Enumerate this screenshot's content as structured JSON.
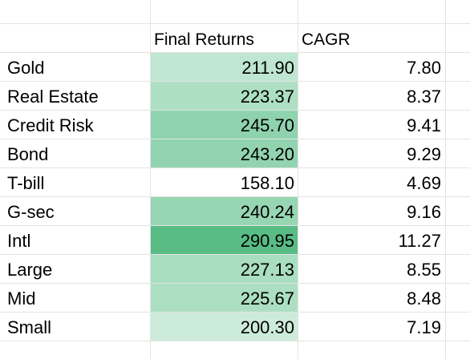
{
  "sheet": {
    "headers": {
      "returns": "Final Returns",
      "cagr": "CAGR"
    },
    "rows": [
      {
        "name": "Gold",
        "final_returns": "211.90",
        "cagr": "7.80",
        "fill": "#bfe6d0"
      },
      {
        "name": "Real Estate",
        "final_returns": "223.37",
        "cagr": "8.37",
        "fill": "#ade0c2"
      },
      {
        "name": "Credit Risk",
        "final_returns": "245.70",
        "cagr": "9.41",
        "fill": "#8fd3ae"
      },
      {
        "name": "Bond",
        "final_returns": "243.20",
        "cagr": "9.29",
        "fill": "#92d4b0"
      },
      {
        "name": "T-bill",
        "final_returns": "158.10",
        "cagr": "4.69",
        "fill": "#ffffff"
      },
      {
        "name": "G-sec",
        "final_returns": "240.24",
        "cagr": "9.16",
        "fill": "#97d6b3"
      },
      {
        "name": "Intl",
        "final_returns": "290.95",
        "cagr": "11.27",
        "fill": "#59bc85"
      },
      {
        "name": "Large",
        "final_returns": "227.13",
        "cagr": "8.55",
        "fill": "#a9dec0"
      },
      {
        "name": "Mid",
        "final_returns": "225.67",
        "cagr": "8.48",
        "fill": "#acdfc2"
      },
      {
        "name": "Small",
        "final_returns": "200.30",
        "cagr": "7.19",
        "fill": "#cdebda"
      }
    ]
  },
  "colors": {
    "gridline": "#e2e3e3",
    "text": "#000000",
    "background": "#ffffff"
  }
}
